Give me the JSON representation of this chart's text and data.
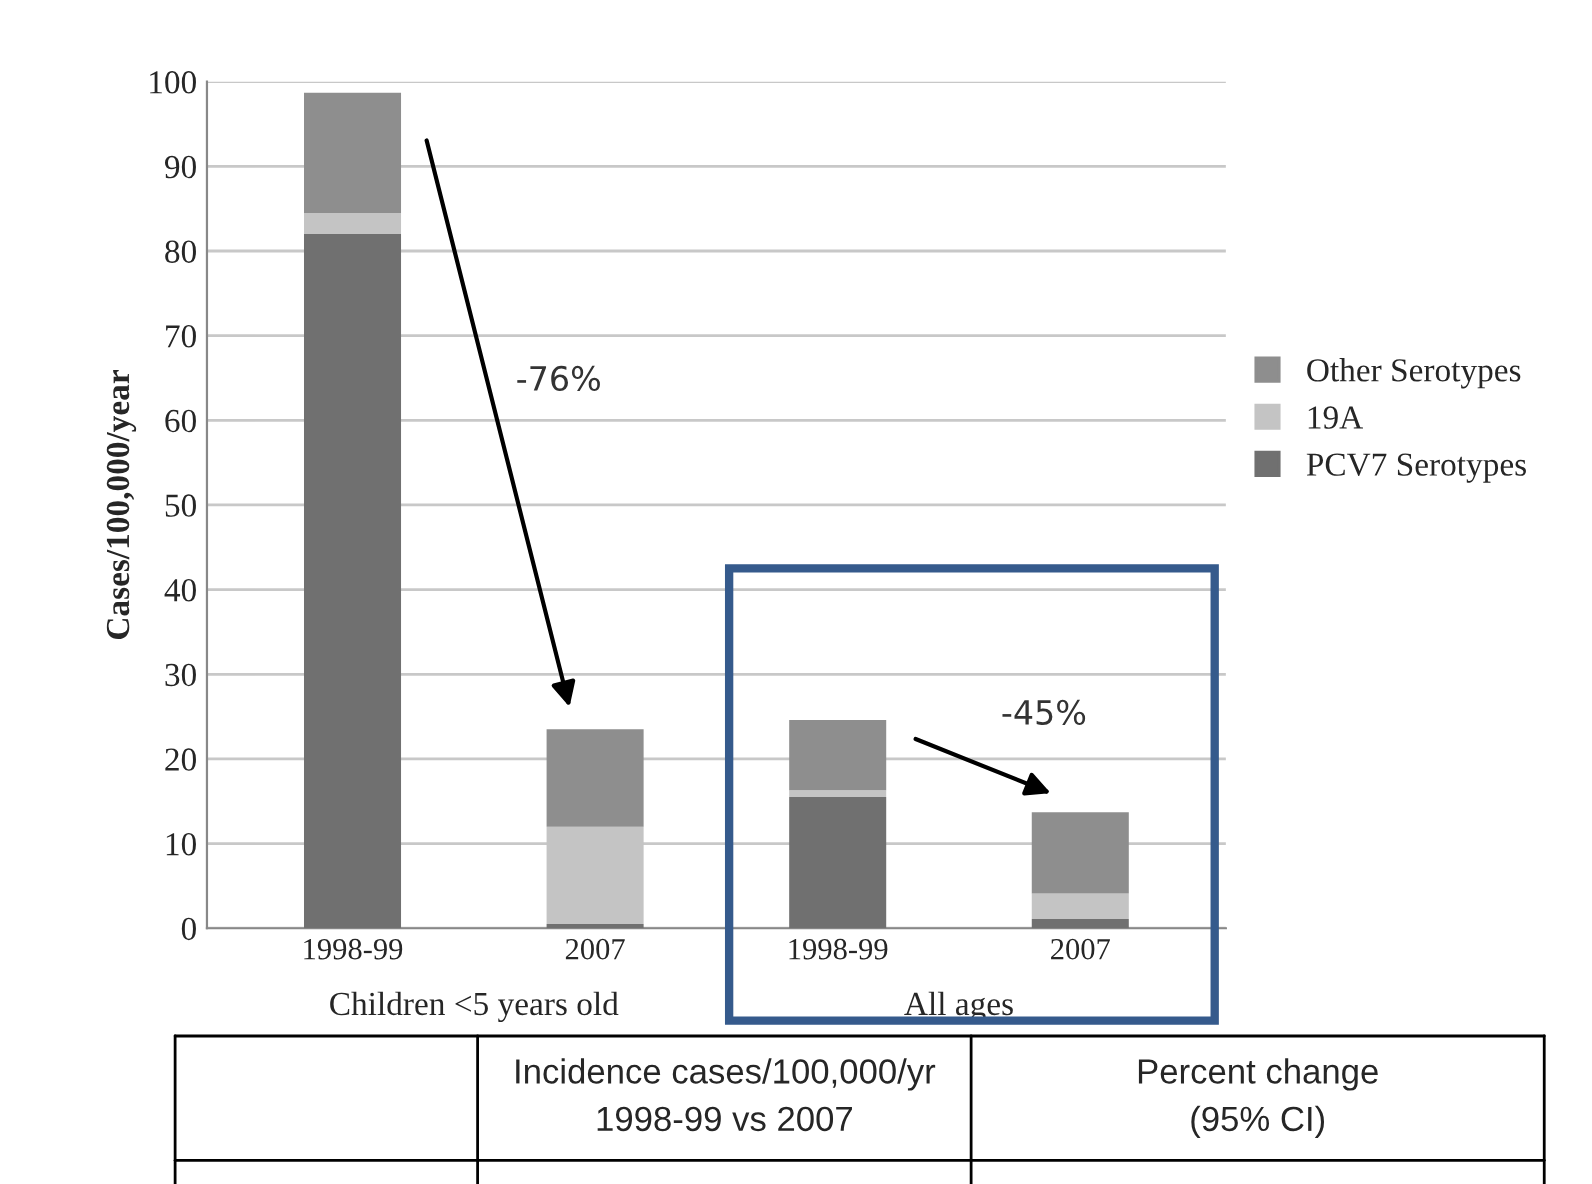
{
  "chart_data": {
    "type": "bar",
    "stacked": true,
    "categories": [
      "1998-99",
      "2007",
      "1998-99",
      "2007"
    ],
    "series": [
      {
        "name": "PCV7 Serotypes",
        "color": "#707070",
        "values": [
          82,
          0.5,
          15.5,
          1.1
        ]
      },
      {
        "name": "19A",
        "color": "#c4c4c4",
        "values": [
          2.5,
          11.5,
          0.8,
          3
        ]
      },
      {
        "name": "Other Serotypes",
        "color": "#8e8e8e",
        "values": [
          14.2,
          11.5,
          8.3,
          9.6
        ]
      }
    ],
    "ylabel": "Cases/100,000/year",
    "ylim": [
      0,
      100
    ],
    "yticks": [
      0,
      10,
      20,
      30,
      40,
      50,
      60,
      70,
      80,
      90,
      100
    ],
    "grid": "y",
    "legend": "right",
    "annotations": [
      "Children <5 years old",
      "All ages",
      "-76%",
      "-45%",
      "Incidence cases/100,000/yr\n1998-99 vs 2007",
      "Percent change\n(95% CI)"
    ]
  }
}
